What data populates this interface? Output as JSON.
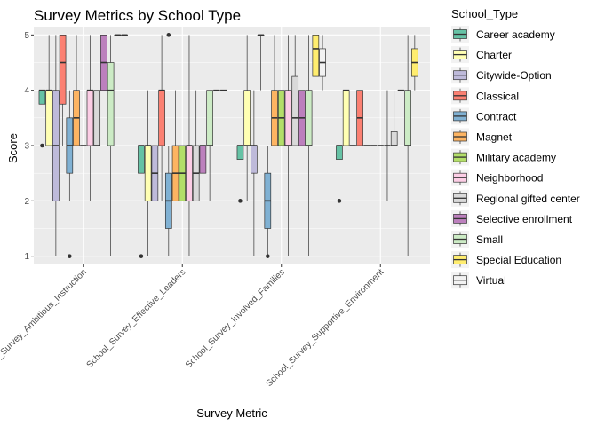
{
  "chart_data": {
    "type": "boxplot",
    "title": "Survey Metrics by School Type",
    "xlabel": "Survey Metric",
    "ylabel": "Score",
    "ylim": [
      0.85,
      5.15
    ],
    "yticks": [
      1,
      2,
      3,
      4,
      5
    ],
    "grid": true,
    "legend_position": "right",
    "legend_title": "School_Type",
    "categories": [
      "School_Survey_Ambitious_Instruction",
      "School_Survey_Effective_Leaders",
      "School_Survey_Involved_Families",
      "School_Survey_Supportive_Environment"
    ],
    "series": [
      {
        "name": "Career academy",
        "color": "#66C2A5",
        "boxes": [
          {
            "min": 3.75,
            "q1": 3.75,
            "median": 4,
            "q3": 4,
            "max": 4,
            "outliers": [
              3
            ]
          },
          {
            "min": 2.5,
            "q1": 2.5,
            "median": 3,
            "q3": 3,
            "max": 3,
            "outliers": [
              1
            ]
          },
          {
            "min": 2.75,
            "q1": 2.75,
            "median": 3,
            "q3": 3,
            "max": 3,
            "outliers": [
              2
            ]
          },
          {
            "min": 2.75,
            "q1": 2.75,
            "median": 3,
            "q3": 3,
            "max": 3,
            "outliers": [
              2
            ]
          }
        ]
      },
      {
        "name": "Charter",
        "color": "#FFFFB3",
        "boxes": [
          {
            "min": 3,
            "q1": 3,
            "median": 4,
            "q3": 4,
            "max": 5,
            "outliers": []
          },
          {
            "min": 1,
            "q1": 2,
            "median": 3,
            "q3": 3,
            "max": 4,
            "outliers": []
          },
          {
            "min": 2,
            "q1": 3,
            "median": 3,
            "q3": 4,
            "max": 5,
            "outliers": []
          },
          {
            "min": 2,
            "q1": 3,
            "median": 4,
            "q3": 4,
            "max": 5,
            "outliers": []
          }
        ]
      },
      {
        "name": "Citywide-Option",
        "color": "#BEBADA",
        "boxes": [
          {
            "min": 1,
            "q1": 2,
            "median": 3,
            "q3": 4,
            "max": 5,
            "outliers": []
          },
          {
            "min": 1,
            "q1": 2,
            "median": 2.5,
            "q3": 3,
            "max": 5,
            "outliers": []
          },
          {
            "min": 1,
            "q1": 2.5,
            "median": 3,
            "q3": 3,
            "max": 4,
            "outliers": []
          },
          {
            "min": 3,
            "q1": 3,
            "median": 3,
            "q3": 3,
            "max": 3,
            "outliers": []
          }
        ]
      },
      {
        "name": "Classical",
        "color": "#FB8072",
        "boxes": [
          {
            "min": 3,
            "q1": 3.75,
            "median": 4.5,
            "q3": 5,
            "max": 5,
            "outliers": []
          },
          {
            "min": 2,
            "q1": 3,
            "median": 4,
            "q3": 4,
            "max": 5,
            "outliers": []
          },
          {
            "min": 4,
            "q1": 5,
            "median": 5,
            "q3": 5,
            "max": 5,
            "outliers": []
          },
          {
            "min": 3,
            "q1": 3,
            "median": 3.5,
            "q3": 4,
            "max": 4,
            "outliers": []
          }
        ]
      },
      {
        "name": "Contract",
        "color": "#80B1D3",
        "boxes": [
          {
            "min": 2,
            "q1": 2.5,
            "median": 3,
            "q3": 3.5,
            "max": 4,
            "outliers": [
              1
            ]
          },
          {
            "min": 1,
            "q1": 1.5,
            "median": 2,
            "q3": 2.5,
            "max": 3,
            "outliers": [
              5
            ]
          },
          {
            "min": 1,
            "q1": 1.5,
            "median": 2,
            "q3": 2.5,
            "max": 3,
            "outliers": [
              1
            ]
          },
          {
            "min": 3,
            "q1": 3,
            "median": 3,
            "q3": 3,
            "max": 3,
            "outliers": []
          }
        ]
      },
      {
        "name": "Magnet",
        "color": "#FDB462",
        "boxes": [
          {
            "min": 3,
            "q1": 3,
            "median": 3.5,
            "q3": 4,
            "max": 5,
            "outliers": []
          },
          {
            "min": 2,
            "q1": 2,
            "median": 2.5,
            "q3": 3,
            "max": 4,
            "outliers": []
          },
          {
            "min": 3,
            "q1": 3,
            "median": 3.5,
            "q3": 4,
            "max": 5,
            "outliers": []
          },
          {
            "min": 3,
            "q1": 3,
            "median": 3,
            "q3": 3,
            "max": 3,
            "outliers": []
          }
        ]
      },
      {
        "name": "Military academy",
        "color": "#B3DE69",
        "boxes": [
          {
            "min": 3,
            "q1": 3,
            "median": 3,
            "q3": 3,
            "max": 3,
            "outliers": []
          },
          {
            "min": 2,
            "q1": 2,
            "median": 2.5,
            "q3": 3,
            "max": 3,
            "outliers": []
          },
          {
            "min": 3,
            "q1": 3,
            "median": 3.5,
            "q3": 4,
            "max": 4,
            "outliers": []
          },
          {
            "min": 3,
            "q1": 3,
            "median": 3,
            "q3": 3,
            "max": 3,
            "outliers": []
          }
        ]
      },
      {
        "name": "Neighborhood",
        "color": "#FCCDE5",
        "boxes": [
          {
            "min": 2,
            "q1": 3,
            "median": 4,
            "q3": 4,
            "max": 5,
            "outliers": []
          },
          {
            "min": 1,
            "q1": 2,
            "median": 3,
            "q3": 3,
            "max": 5,
            "outliers": []
          },
          {
            "min": 1,
            "q1": 3,
            "median": 3,
            "q3": 4,
            "max": 5,
            "outliers": []
          },
          {
            "min": 2,
            "q1": 3,
            "median": 3,
            "q3": 3,
            "max": 4,
            "outliers": []
          }
        ]
      },
      {
        "name": "Regional gifted center",
        "color": "#D9D9D9",
        "boxes": [
          {
            "min": 3,
            "q1": 3,
            "median": 3,
            "q3": 4,
            "max": 4,
            "outliers": []
          },
          {
            "min": 2,
            "q1": 2,
            "median": 2.5,
            "q3": 3,
            "max": 4,
            "outliers": []
          },
          {
            "min": 3,
            "q1": 3,
            "median": 3.5,
            "q3": 4.25,
            "max": 5,
            "outliers": []
          },
          {
            "min": 3,
            "q1": 3,
            "median": 3,
            "q3": 3.25,
            "max": 4,
            "outliers": []
          }
        ]
      },
      {
        "name": "Selective enrollment",
        "color": "#BC80BD",
        "boxes": [
          {
            "min": 4,
            "q1": 4,
            "median": 4.5,
            "q3": 5,
            "max": 5,
            "outliers": []
          },
          {
            "min": 2,
            "q1": 2.5,
            "median": 3,
            "q3": 3,
            "max": 4,
            "outliers": []
          },
          {
            "min": 3,
            "q1": 3,
            "median": 3.5,
            "q3": 4,
            "max": 4,
            "outliers": []
          },
          {
            "min": 4,
            "q1": 4,
            "median": 4,
            "q3": 4,
            "max": 4,
            "outliers": []
          }
        ]
      },
      {
        "name": "Small",
        "color": "#CCEBC5",
        "boxes": [
          {
            "min": 1,
            "q1": 3,
            "median": 4,
            "q3": 4.5,
            "max": 5,
            "outliers": []
          },
          {
            "min": 2,
            "q1": 3,
            "median": 3,
            "q3": 4,
            "max": 4,
            "outliers": []
          },
          {
            "min": 1,
            "q1": 3,
            "median": 3,
            "q3": 4,
            "max": 5,
            "outliers": []
          },
          {
            "min": 1,
            "q1": 3,
            "median": 3,
            "q3": 4,
            "max": 5,
            "outliers": []
          }
        ]
      },
      {
        "name": "Special Education",
        "color": "#FFED6F",
        "boxes": [
          {
            "min": 5,
            "q1": 5,
            "median": 5,
            "q3": 5,
            "max": 5,
            "outliers": []
          },
          {
            "min": 4,
            "q1": 4,
            "median": 4,
            "q3": 4,
            "max": 4,
            "outliers": []
          },
          {
            "min": 4.25,
            "q1": 4.25,
            "median": 4.75,
            "q3": 5,
            "max": 5,
            "outliers": []
          },
          {
            "min": 4,
            "q1": 4.25,
            "median": 4.5,
            "q3": 4.75,
            "max": 5,
            "outliers": []
          }
        ]
      },
      {
        "name": "Virtual",
        "color": "#F2F2F2",
        "boxes": [
          {
            "min": 5,
            "q1": 5,
            "median": 5,
            "q3": 5,
            "max": 5,
            "outliers": []
          },
          {
            "min": 4,
            "q1": 4,
            "median": 4,
            "q3": 4,
            "max": 4,
            "outliers": []
          },
          {
            "min": 4,
            "q1": 4.25,
            "median": 4.5,
            "q3": 4.75,
            "max": 5,
            "outliers": []
          },
          null
        ]
      }
    ]
  }
}
